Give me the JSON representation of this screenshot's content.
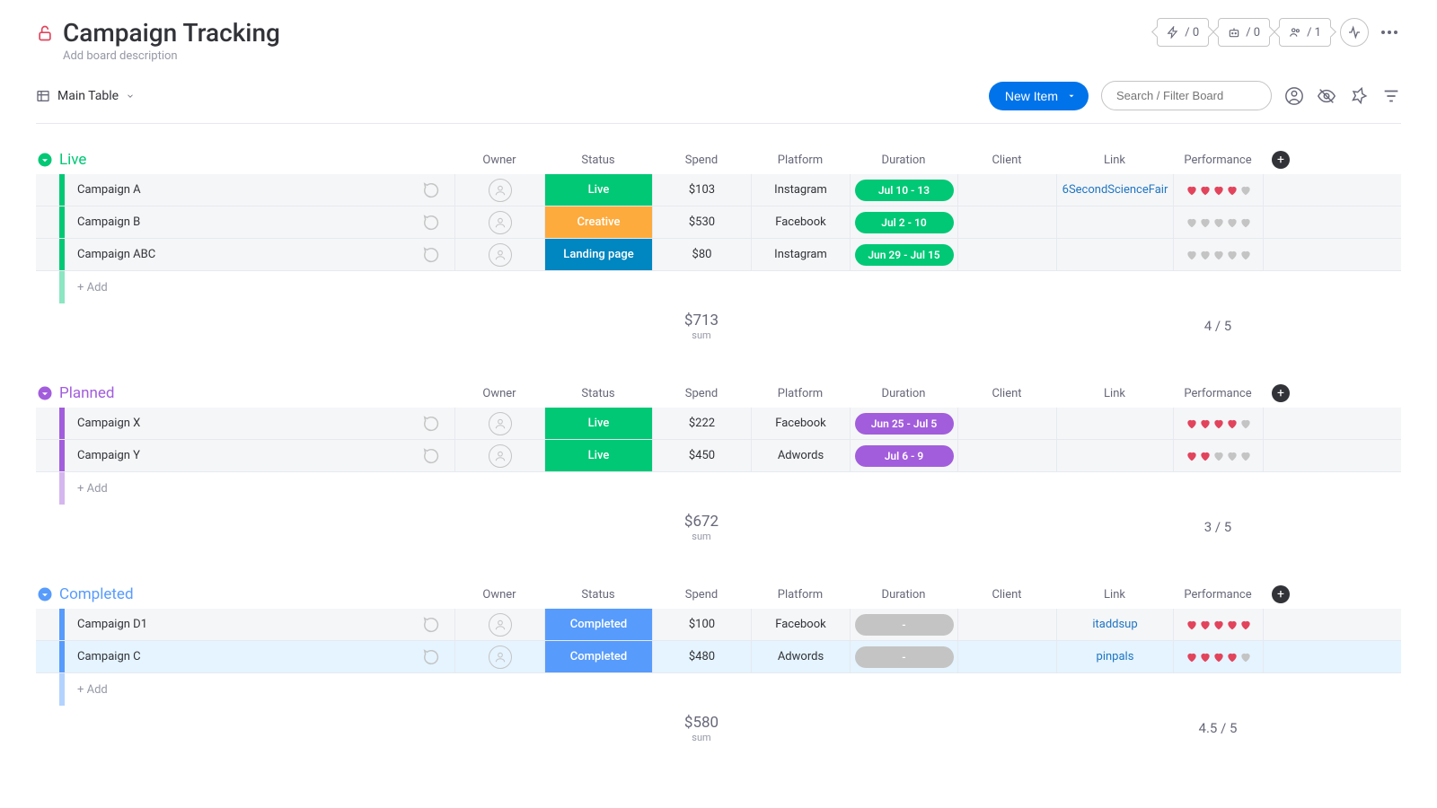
{
  "header": {
    "title": "Campaign Tracking",
    "description": "Add board description",
    "badges": [
      {
        "icon": "bolt",
        "value": "/ 0"
      },
      {
        "icon": "robot",
        "value": "/ 0"
      },
      {
        "icon": "people",
        "value": "/ 1"
      }
    ]
  },
  "toolbar": {
    "view_label": "Main Table",
    "new_item_label": "New Item",
    "search_placeholder": "Search / Filter Board"
  },
  "columns": [
    "Owner",
    "Status",
    "Spend",
    "Platform",
    "Duration",
    "Client",
    "Link",
    "Performance"
  ],
  "add_row_label": "+ Add",
  "sum_label": "sum",
  "colors": {
    "heart_filled": "#e2445c",
    "heart_empty": "#c4c4c4",
    "status_live": "#00c875",
    "status_creative": "#fdab3d",
    "status_landing": "#0086c0",
    "status_completed": "#579bfc",
    "duration_green": "#00c875",
    "duration_purple": "#a25ddc",
    "duration_grey": "#c4c4c4"
  },
  "groups": [
    {
      "id": "live",
      "name": "Live",
      "color": "#00c875",
      "rows": [
        {
          "name": "Campaign A",
          "status": "Live",
          "status_color": "#00c875",
          "spend": "$103",
          "platform": "Instagram",
          "duration": "Jul 10 - 13",
          "duration_color": "#00c875",
          "link": "6SecondScienceFair",
          "hearts": 4
        },
        {
          "name": "Campaign B",
          "status": "Creative",
          "status_color": "#fdab3d",
          "spend": "$530",
          "platform": "Facebook",
          "duration": "Jul 2 - 10",
          "duration_color": "#00c875",
          "link": "",
          "hearts": 0
        },
        {
          "name": "Campaign ABC",
          "status": "Landing page",
          "status_color": "#0086c0",
          "spend": "$80",
          "platform": "Instagram",
          "duration": "Jun 29 - Jul 15",
          "duration_color": "#00c875",
          "link": "",
          "hearts": 0
        }
      ],
      "spend_sum": "$713",
      "perf_sum": "4 / 5"
    },
    {
      "id": "planned",
      "name": "Planned",
      "color": "#a25ddc",
      "rows": [
        {
          "name": "Campaign X",
          "status": "Live",
          "status_color": "#00c875",
          "spend": "$222",
          "platform": "Facebook",
          "duration": "Jun 25 - Jul 5",
          "duration_color": "#a25ddc",
          "link": "",
          "hearts": 4
        },
        {
          "name": "Campaign Y",
          "status": "Live",
          "status_color": "#00c875",
          "spend": "$450",
          "platform": "Adwords",
          "duration": "Jul 6 - 9",
          "duration_color": "#a25ddc",
          "link": "",
          "hearts": 2
        }
      ],
      "spend_sum": "$672",
      "perf_sum": "3 / 5"
    },
    {
      "id": "completed",
      "name": "Completed",
      "color": "#579bfc",
      "rows": [
        {
          "name": "Campaign D1",
          "status": "Completed",
          "status_color": "#579bfc",
          "spend": "$100",
          "platform": "Facebook",
          "duration": "-",
          "duration_color": "#c4c4c4",
          "link": "itaddsup",
          "hearts": 5
        },
        {
          "name": "Campaign C",
          "selected": true,
          "status": "Completed",
          "status_color": "#579bfc",
          "spend": "$480",
          "platform": "Adwords",
          "duration": "-",
          "duration_color": "#c4c4c4",
          "link": "pinpals",
          "hearts": 4
        }
      ],
      "spend_sum": "$580",
      "perf_sum": "4.5 / 5"
    }
  ]
}
